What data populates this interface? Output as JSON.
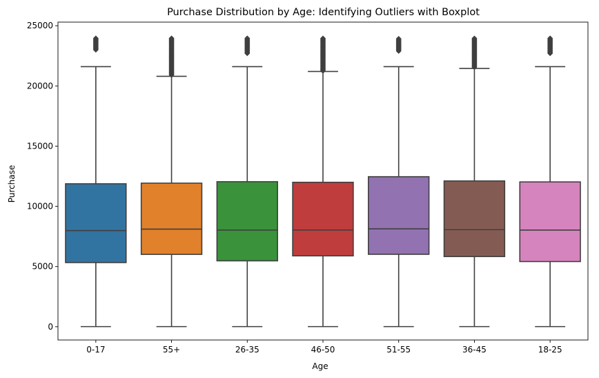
{
  "chart_data": {
    "type": "box",
    "title": "Purchase Distribution by Age: Identifying Outliers with Boxplot",
    "xlabel": "Age",
    "ylabel": "Purchase",
    "ylim": [
      -1100,
      25300
    ],
    "yticks": [
      0,
      5000,
      10000,
      15000,
      20000,
      25000
    ],
    "yticklabels": [
      "0",
      "5000",
      "10000",
      "15000",
      "20000",
      "25000"
    ],
    "grid": false,
    "categories": [
      "0-17",
      "55+",
      "26-35",
      "46-50",
      "51-55",
      "36-45",
      "18-25"
    ],
    "colors": [
      "#3274a1",
      "#e1812c",
      "#3a923a",
      "#c03d3e",
      "#9372b2",
      "#845b53",
      "#d684bd"
    ],
    "series": [
      {
        "values": [
          {
            "min": 12,
            "q1": 5330,
            "median": 7986,
            "q3": 11874,
            "whisker_high": 21600,
            "outliers": [
              23000,
              23961
            ]
          },
          {
            "min": 12,
            "q1": 6010,
            "median": 8105,
            "q3": 11925,
            "whisker_high": 20800,
            "outliers": [
              20900,
              21500,
              22600,
              23961
            ]
          },
          {
            "min": 12,
            "q1": 5475,
            "median": 8030,
            "q3": 12047,
            "whisker_high": 21600,
            "outliers": [
              22700,
              23961
            ]
          },
          {
            "min": 12,
            "q1": 5888,
            "median": 8036,
            "q3": 11997,
            "whisker_high": 21200,
            "outliers": [
              21250,
              21500,
              22700,
              23961
            ]
          },
          {
            "min": 12,
            "q1": 6017,
            "median": 8130,
            "q3": 12462,
            "whisker_high": 21600,
            "outliers": [
              22900,
              23961
            ]
          },
          {
            "min": 12,
            "q1": 5830,
            "median": 8061,
            "q3": 12107,
            "whisker_high": 21450,
            "outliers": [
              21550,
              22600,
              23961
            ]
          },
          {
            "min": 12,
            "q1": 5415,
            "median": 8027,
            "q3": 12028,
            "whisker_high": 21600,
            "outliers": [
              22700,
              23961
            ]
          }
        ]
      }
    ]
  }
}
